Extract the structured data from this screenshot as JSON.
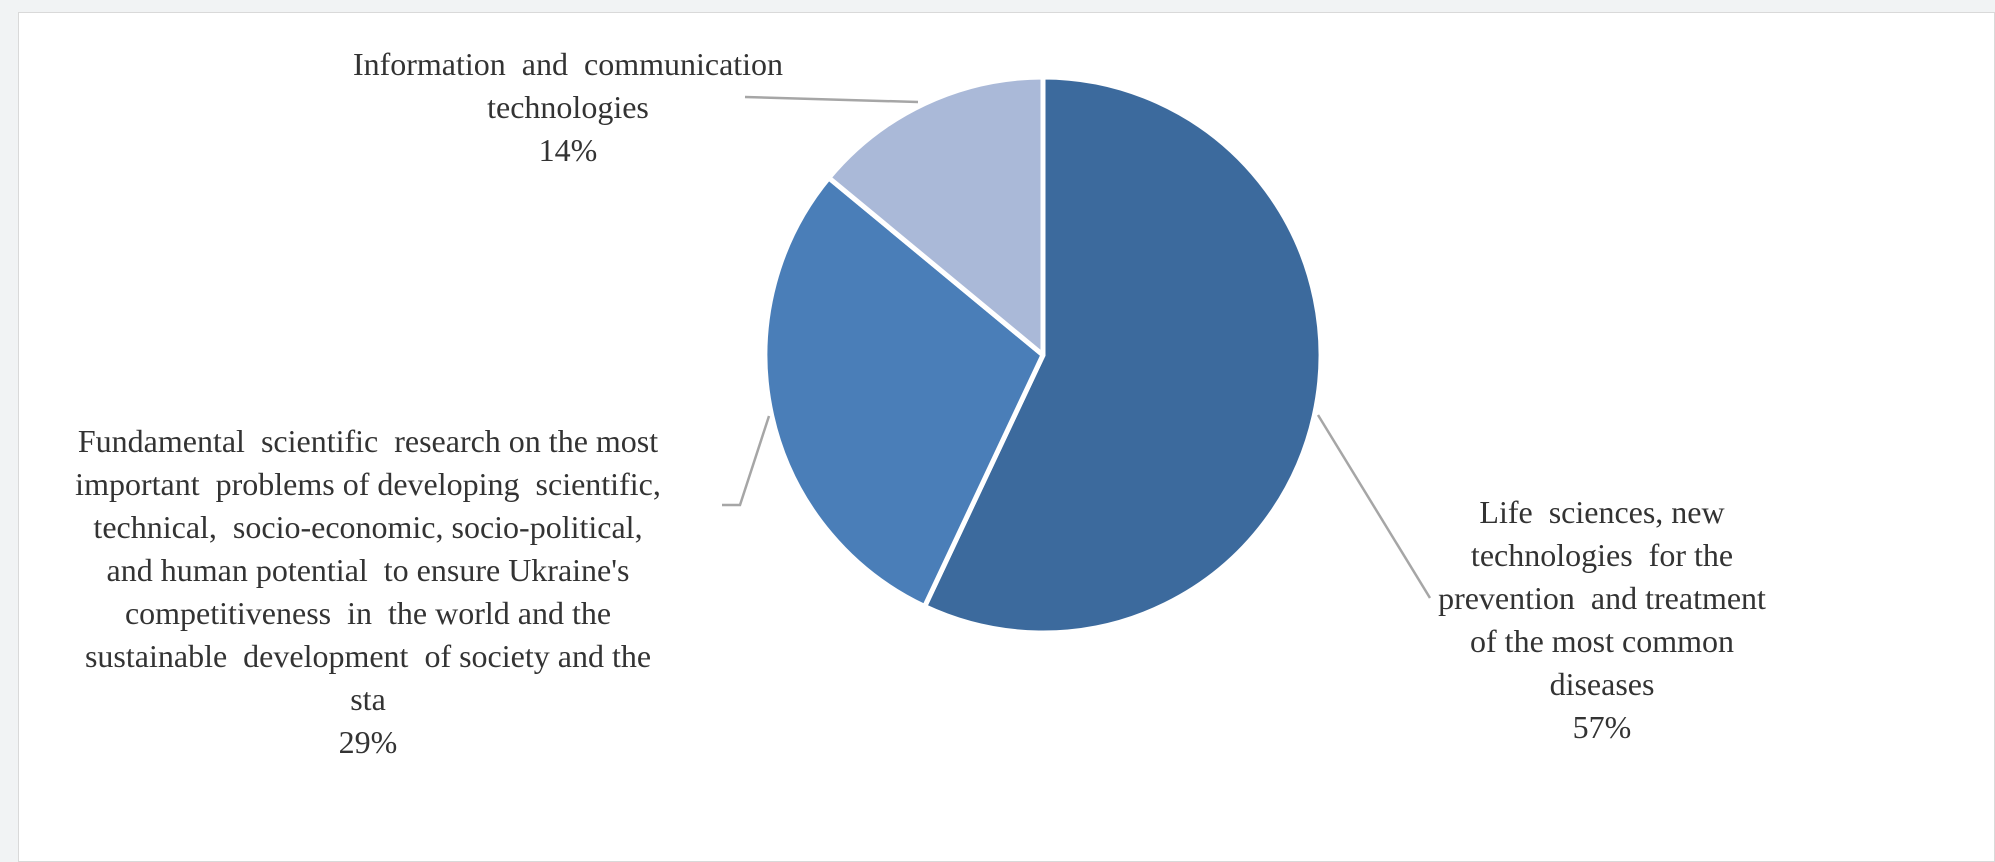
{
  "chart_data": {
    "type": "pie",
    "title": "",
    "start_angle_deg": 0,
    "direction": "clockwise",
    "slices": [
      {
        "label_lines": [
          "Life  sciences, new",
          "technologies  for the",
          "prevention  and treatment",
          "of the most common",
          "diseases"
        ],
        "value": 57,
        "percent_label": "57%",
        "color": "#3c6a9d"
      },
      {
        "label_lines": [
          "Fundamental  scientific  research on the most",
          "important  problems of developing  scientific,",
          "technical,  socio-economic, socio-political,",
          "and human potential  to ensure Ukraine's",
          "competitiveness  in  the world and the",
          "sustainable  development  of society and the",
          "sta"
        ],
        "value": 29,
        "percent_label": "29%",
        "color": "#4a7eb8"
      },
      {
        "label_lines": [
          "Information  and  communication",
          "technologies"
        ],
        "value": 14,
        "percent_label": "14%",
        "color": "#aab9d8"
      }
    ],
    "border_color": "#ffffff",
    "leader_line_color": "#a6a6a6"
  }
}
